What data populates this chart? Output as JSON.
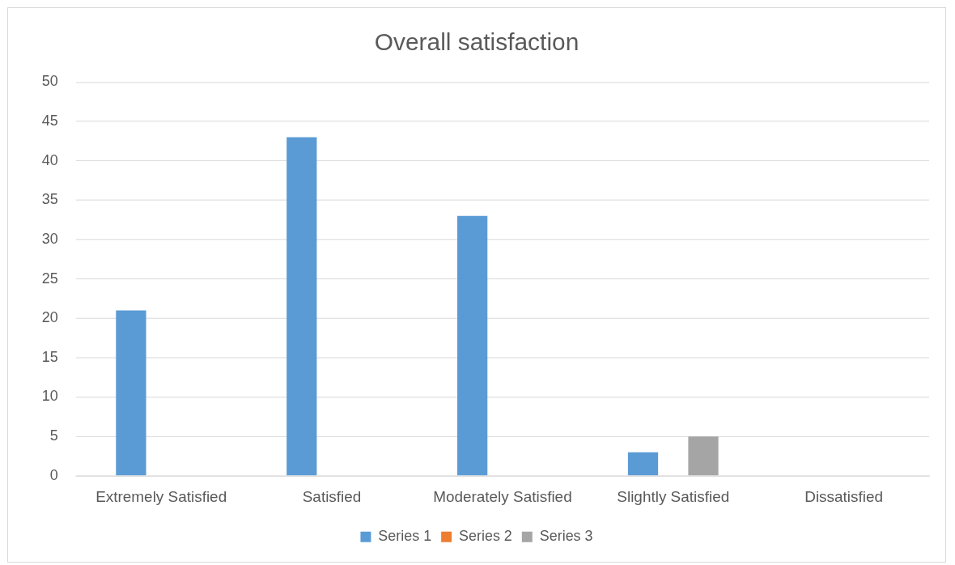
{
  "chart_data": {
    "type": "bar",
    "title": "Overall satisfaction",
    "categories": [
      "Extremely Satisfied",
      "Satisfied",
      "Moderately Satisfied",
      "Slightly Satisfied",
      "Dissatisfied"
    ],
    "series": [
      {
        "name": "Series 1",
        "color": "#5b9bd5",
        "values": [
          21,
          43,
          33,
          3,
          0
        ]
      },
      {
        "name": "Series 2",
        "color": "#ed7d31",
        "values": [
          0,
          0,
          0,
          0,
          0
        ]
      },
      {
        "name": "Series 3",
        "color": "#a5a5a5",
        "values": [
          0,
          0,
          0,
          5,
          0
        ]
      }
    ],
    "ylim": [
      0,
      50
    ],
    "yticks": [
      0,
      5,
      10,
      15,
      20,
      25,
      30,
      35,
      40,
      45,
      50
    ],
    "grid": "y",
    "legend": "bottom"
  }
}
